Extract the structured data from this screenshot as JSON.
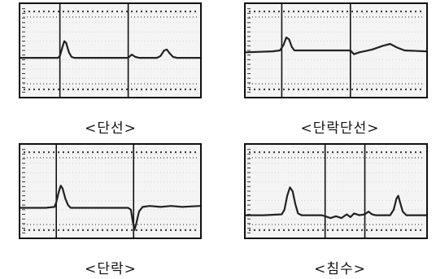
{
  "colors": {
    "frame": "#111111",
    "screen": "#f4f4f4",
    "trace": "#222222",
    "cursor": "#111111",
    "grid": "#8a8a8a"
  },
  "panels": [
    {
      "id": "open-circuit",
      "caption": "<단선>",
      "cursors": [
        0.22,
        0.6
      ],
      "trace": [
        [
          0,
          0.58
        ],
        [
          0.15,
          0.58
        ],
        [
          0.21,
          0.58
        ],
        [
          0.22,
          0.56
        ],
        [
          0.235,
          0.46
        ],
        [
          0.245,
          0.4
        ],
        [
          0.255,
          0.42
        ],
        [
          0.27,
          0.52
        ],
        [
          0.285,
          0.57
        ],
        [
          0.3,
          0.58
        ],
        [
          0.58,
          0.58
        ],
        [
          0.6,
          0.58
        ],
        [
          0.62,
          0.545
        ],
        [
          0.64,
          0.57
        ],
        [
          0.66,
          0.58
        ],
        [
          0.76,
          0.58
        ],
        [
          0.78,
          0.56
        ],
        [
          0.8,
          0.5
        ],
        [
          0.815,
          0.49
        ],
        [
          0.83,
          0.53
        ],
        [
          0.85,
          0.57
        ],
        [
          0.87,
          0.58
        ],
        [
          1,
          0.58
        ]
      ]
    },
    {
      "id": "short-and-open",
      "caption": "<단락단선>",
      "cursors": [
        0.2,
        0.58
      ],
      "trace": [
        [
          0,
          0.52
        ],
        [
          0.15,
          0.51
        ],
        [
          0.19,
          0.5
        ],
        [
          0.21,
          0.44
        ],
        [
          0.225,
          0.36
        ],
        [
          0.24,
          0.38
        ],
        [
          0.255,
          0.46
        ],
        [
          0.27,
          0.5
        ],
        [
          0.3,
          0.5
        ],
        [
          0.56,
          0.5
        ],
        [
          0.58,
          0.5
        ],
        [
          0.6,
          0.54
        ],
        [
          0.63,
          0.52
        ],
        [
          0.7,
          0.49
        ],
        [
          0.76,
          0.45
        ],
        [
          0.8,
          0.43
        ],
        [
          0.84,
          0.47
        ],
        [
          0.88,
          0.5
        ],
        [
          1,
          0.51
        ]
      ]
    },
    {
      "id": "short-circuit",
      "caption": "<단락>",
      "cursors": [
        0.2,
        0.63
      ],
      "trace": [
        [
          0,
          0.68
        ],
        [
          0.14,
          0.68
        ],
        [
          0.19,
          0.67
        ],
        [
          0.2,
          0.62
        ],
        [
          0.215,
          0.5
        ],
        [
          0.225,
          0.44
        ],
        [
          0.235,
          0.47
        ],
        [
          0.25,
          0.58
        ],
        [
          0.265,
          0.65
        ],
        [
          0.28,
          0.68
        ],
        [
          0.6,
          0.68
        ],
        [
          0.615,
          0.7
        ],
        [
          0.625,
          0.82
        ],
        [
          0.635,
          0.92
        ],
        [
          0.645,
          0.85
        ],
        [
          0.66,
          0.72
        ],
        [
          0.68,
          0.67
        ],
        [
          0.72,
          0.66
        ],
        [
          0.78,
          0.67
        ],
        [
          0.84,
          0.66
        ],
        [
          0.9,
          0.67
        ],
        [
          1,
          0.66
        ]
      ]
    },
    {
      "id": "flooding",
      "caption": "<침수>",
      "cursors": [
        0.44,
        0.66
      ],
      "trace": [
        [
          0,
          0.76
        ],
        [
          0.1,
          0.76
        ],
        [
          0.2,
          0.75
        ],
        [
          0.215,
          0.7
        ],
        [
          0.23,
          0.55
        ],
        [
          0.245,
          0.46
        ],
        [
          0.26,
          0.5
        ],
        [
          0.275,
          0.64
        ],
        [
          0.29,
          0.74
        ],
        [
          0.31,
          0.76
        ],
        [
          0.42,
          0.76
        ],
        [
          0.44,
          0.77
        ],
        [
          0.47,
          0.79
        ],
        [
          0.5,
          0.77
        ],
        [
          0.53,
          0.79
        ],
        [
          0.56,
          0.75
        ],
        [
          0.58,
          0.78
        ],
        [
          0.6,
          0.74
        ],
        [
          0.63,
          0.76
        ],
        [
          0.66,
          0.75
        ],
        [
          0.68,
          0.72
        ],
        [
          0.7,
          0.75
        ],
        [
          0.72,
          0.76
        ],
        [
          0.8,
          0.76
        ],
        [
          0.82,
          0.7
        ],
        [
          0.835,
          0.58
        ],
        [
          0.845,
          0.55
        ],
        [
          0.855,
          0.62
        ],
        [
          0.87,
          0.72
        ],
        [
          0.89,
          0.76
        ],
        [
          1,
          0.76
        ]
      ]
    }
  ]
}
